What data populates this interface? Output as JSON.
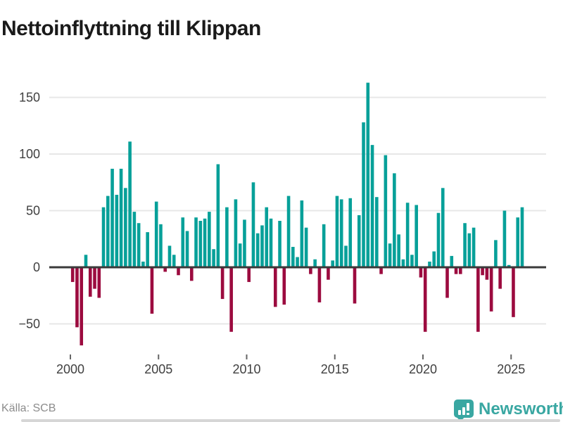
{
  "title": "Nettoinflyttning till Klippan",
  "footer": {
    "source": "Källa: SCB",
    "brand": "Newsworthy"
  },
  "colors": {
    "positive": "#07A099",
    "negative": "#9C0B3F",
    "grid": "#E7E7E7",
    "axis_line": "#3A3A3A",
    "tick_mark": "#666666",
    "tick_label": "#404040",
    "title_text": "#1A1A1A",
    "source_text": "#8C8C8C",
    "logo_teal": "#39A7A2"
  },
  "chart_data": {
    "type": "bar",
    "title": "Nettoinflyttning till Klippan",
    "frequency": "quarterly",
    "x_ticks": [
      2000,
      2005,
      2010,
      2015,
      2020,
      2025
    ],
    "y_ticks": [
      150,
      100,
      50,
      0,
      -50
    ],
    "ylim": [
      -75,
      170
    ],
    "grid": true,
    "legend": "none",
    "points": [
      [
        "2000Q1",
        -13
      ],
      [
        "2000Q2",
        -53
      ],
      [
        "2000Q3",
        -69
      ],
      [
        "2000Q4",
        11
      ],
      [
        "2001Q1",
        -26
      ],
      [
        "2001Q2",
        -19
      ],
      [
        "2001Q3",
        -27
      ],
      [
        "2001Q4",
        53
      ],
      [
        "2002Q1",
        63
      ],
      [
        "2002Q2",
        87
      ],
      [
        "2002Q3",
        64
      ],
      [
        "2002Q4",
        87
      ],
      [
        "2003Q1",
        70
      ],
      [
        "2003Q2",
        111
      ],
      [
        "2003Q3",
        49
      ],
      [
        "2003Q4",
        39
      ],
      [
        "2004Q1",
        5
      ],
      [
        "2004Q2",
        31
      ],
      [
        "2004Q3",
        -41
      ],
      [
        "2004Q4",
        58
      ],
      [
        "2005Q1",
        38
      ],
      [
        "2005Q2",
        -4
      ],
      [
        "2005Q3",
        19
      ],
      [
        "2005Q4",
        11
      ],
      [
        "2006Q1",
        -7
      ],
      [
        "2006Q2",
        44
      ],
      [
        "2006Q3",
        32
      ],
      [
        "2006Q4",
        -12
      ],
      [
        "2007Q1",
        44
      ],
      [
        "2007Q2",
        41
      ],
      [
        "2007Q3",
        43
      ],
      [
        "2007Q4",
        49
      ],
      [
        "2008Q1",
        16
      ],
      [
        "2008Q2",
        91
      ],
      [
        "2008Q3",
        -28
      ],
      [
        "2008Q4",
        53
      ],
      [
        "2009Q1",
        -57
      ],
      [
        "2009Q2",
        60
      ],
      [
        "2009Q3",
        21
      ],
      [
        "2009Q4",
        42
      ],
      [
        "2010Q1",
        -13
      ],
      [
        "2010Q2",
        75
      ],
      [
        "2010Q3",
        30
      ],
      [
        "2010Q4",
        37
      ],
      [
        "2011Q1",
        53
      ],
      [
        "2011Q2",
        43
      ],
      [
        "2011Q3",
        -35
      ],
      [
        "2011Q4",
        41
      ],
      [
        "2012Q1",
        -33
      ],
      [
        "2012Q2",
        63
      ],
      [
        "2012Q3",
        18
      ],
      [
        "2012Q4",
        9
      ],
      [
        "2013Q1",
        59
      ],
      [
        "2013Q2",
        35
      ],
      [
        "2013Q3",
        -6
      ],
      [
        "2013Q4",
        7
      ],
      [
        "2014Q1",
        -31
      ],
      [
        "2014Q2",
        38
      ],
      [
        "2014Q3",
        -11
      ],
      [
        "2014Q4",
        6
      ],
      [
        "2015Q1",
        63
      ],
      [
        "2015Q2",
        60
      ],
      [
        "2015Q3",
        19
      ],
      [
        "2015Q4",
        61
      ],
      [
        "2016Q1",
        -32
      ],
      [
        "2016Q2",
        46
      ],
      [
        "2016Q3",
        128
      ],
      [
        "2016Q4",
        163
      ],
      [
        "2017Q1",
        108
      ],
      [
        "2017Q2",
        62
      ],
      [
        "2017Q3",
        -6
      ],
      [
        "2017Q4",
        99
      ],
      [
        "2018Q1",
        21
      ],
      [
        "2018Q2",
        83
      ],
      [
        "2018Q3",
        29
      ],
      [
        "2018Q4",
        7
      ],
      [
        "2019Q1",
        57
      ],
      [
        "2019Q2",
        11
      ],
      [
        "2019Q3",
        55
      ],
      [
        "2019Q4",
        -9
      ],
      [
        "2020Q1",
        -57
      ],
      [
        "2020Q2",
        5
      ],
      [
        "2020Q3",
        14
      ],
      [
        "2020Q4",
        48
      ],
      [
        "2021Q1",
        70
      ],
      [
        "2021Q2",
        -27
      ],
      [
        "2021Q3",
        10
      ],
      [
        "2021Q4",
        -6
      ],
      [
        "2022Q1",
        -6
      ],
      [
        "2022Q2",
        39
      ],
      [
        "2022Q3",
        30
      ],
      [
        "2022Q4",
        35
      ],
      [
        "2023Q1",
        -57
      ],
      [
        "2023Q2",
        -7
      ],
      [
        "2023Q3",
        -11
      ],
      [
        "2023Q4",
        -39
      ],
      [
        "2024Q1",
        24
      ],
      [
        "2024Q2",
        -19
      ],
      [
        "2024Q3",
        50
      ],
      [
        "2024Q4",
        2
      ],
      [
        "2025Q1",
        -44
      ],
      [
        "2025Q2",
        44
      ],
      [
        "2025Q3",
        53
      ]
    ]
  }
}
